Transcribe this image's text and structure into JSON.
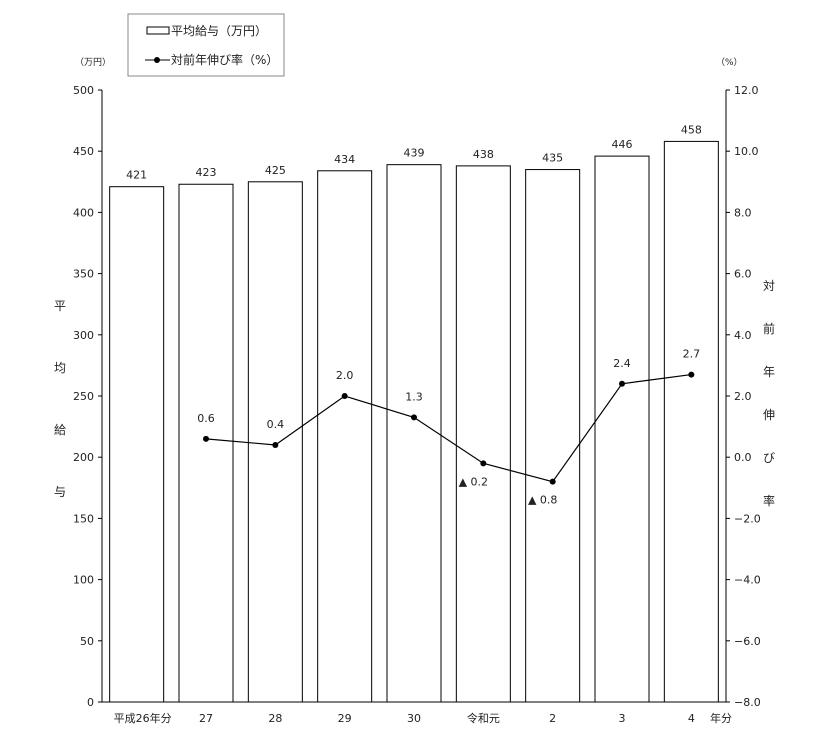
{
  "chart_data": {
    "type": "bar",
    "categories": [
      "平成26年分",
      "27",
      "28",
      "29",
      "30",
      "令和元",
      "2",
      "3",
      "4"
    ],
    "x_suffix": "年分",
    "series": [
      {
        "name": "平均給与（万円）",
        "type": "bar",
        "axis": "left",
        "values": [
          421,
          423,
          425,
          434,
          439,
          438,
          435,
          446,
          458
        ]
      },
      {
        "name": "対前年伸び率（%）",
        "type": "line",
        "axis": "right",
        "values": [
          null,
          0.6,
          0.4,
          2.0,
          1.3,
          -0.2,
          -0.8,
          2.4,
          2.7
        ],
        "labels": [
          null,
          "0.6",
          "0.4",
          "2.0",
          "1.3",
          "▲ 0.2",
          "▲ 0.8",
          "2.4",
          "2.7"
        ]
      }
    ],
    "y_left": {
      "label": "平均給与",
      "unit": "（万円）",
      "ylim": [
        0,
        500
      ],
      "ticks": [
        "0",
        "50",
        "100",
        "150",
        "200",
        "250",
        "300",
        "350",
        "400",
        "450",
        "500"
      ]
    },
    "y_right": {
      "label": "対前年伸び率",
      "unit": "（%）",
      "ylim": [
        -8,
        12
      ],
      "ticks": [
        "-8.0",
        "-6.0",
        "-4.0",
        "-2.0",
        "0.0",
        "2.0",
        "4.0",
        "6.0",
        "8.0",
        "10.0",
        "12.0"
      ]
    },
    "legend": {
      "placement": "top-left",
      "entries": [
        "平均給与（万円）",
        "対前年伸び率（%）"
      ]
    },
    "grid": false
  }
}
